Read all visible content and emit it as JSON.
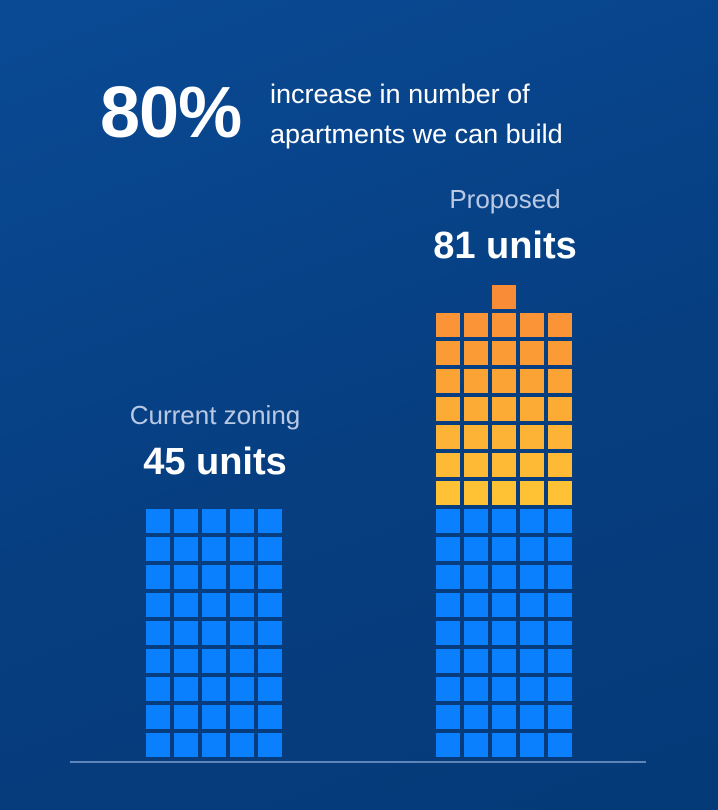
{
  "headline": {
    "percent": "80%",
    "line1": "increase in number of",
    "line2": "apartments we can build"
  },
  "chart_data": {
    "type": "bar",
    "title": "80% increase in number of apartments we can build",
    "categories": [
      "Current zoning",
      "Proposed"
    ],
    "values": [
      45,
      81
    ],
    "value_labels": [
      "45 units",
      "81 units"
    ],
    "unit": "units",
    "grid": false,
    "colors": {
      "existing": "#0a80ff",
      "added_bottom": "#ffc235",
      "added_top": "#f98c36",
      "baseline": "#7d9dd0"
    }
  }
}
